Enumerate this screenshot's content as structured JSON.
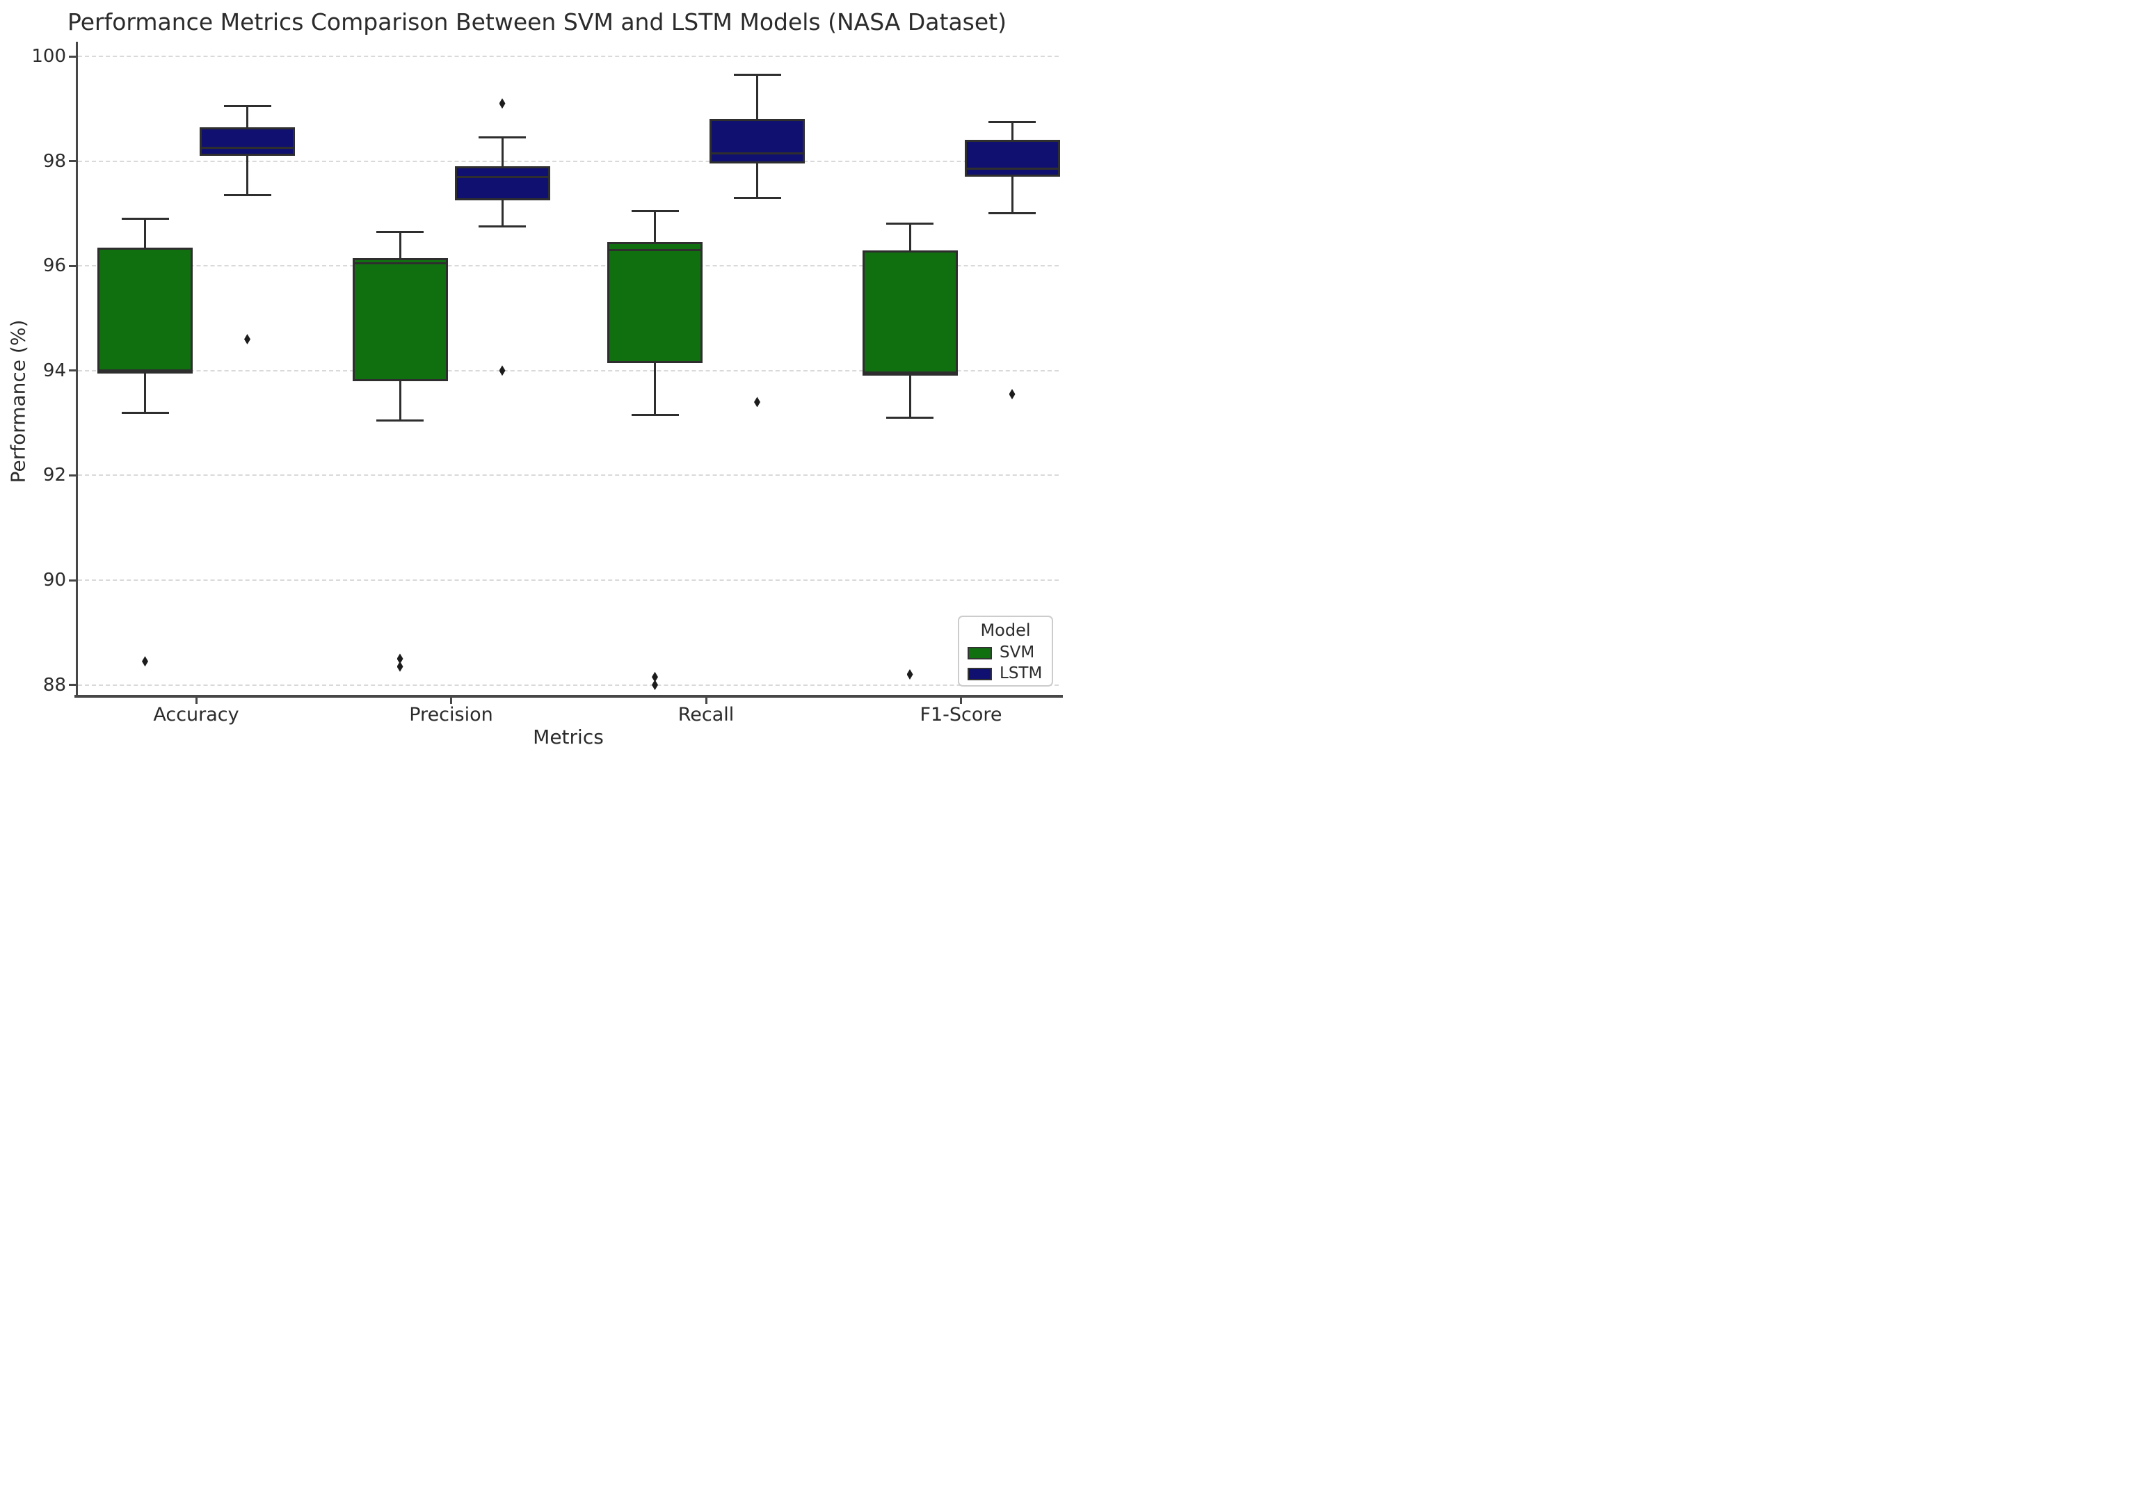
{
  "title": "Performance Metrics Comparison Between SVM and LSTM Models (NASA Dataset)",
  "axes": {
    "xlabel": "Metrics",
    "ylabel": "Performance (%)",
    "yticks": [
      "100",
      "98",
      "96",
      "94",
      "92",
      "90",
      "88"
    ],
    "ytick_values": [
      100,
      98,
      96,
      94,
      92,
      90,
      88
    ],
    "categories": [
      "Accuracy",
      "Precision",
      "Recall",
      "F1-Score"
    ]
  },
  "legend": {
    "title": "Model",
    "entries": [
      {
        "label": "SVM",
        "color": "#107010"
      },
      {
        "label": "LSTM",
        "color": "#101070"
      }
    ]
  },
  "colors": {
    "svm_box": "#107010",
    "lstm_box": "#101070",
    "box_edge": "#2e2e2e",
    "outlier": "#1c1c1c",
    "gridline": "#d9d9d9",
    "spine": "#474747",
    "text": "#2b2b2b",
    "background": "#ffffff"
  },
  "chart_data": {
    "type": "boxplot",
    "title": "Performance Metrics Comparison Between SVM and LSTM Models (NASA Dataset)",
    "xlabel": "Metrics",
    "ylabel": "Performance (%)",
    "categories": [
      "Accuracy",
      "Precision",
      "Recall",
      "F1-Score"
    ],
    "ylim": [
      87.8,
      100.3
    ],
    "yticks": [
      88,
      90,
      92,
      94,
      96,
      98,
      100
    ],
    "grid": "horizontal dashed",
    "legend_position": "lower right",
    "series": [
      {
        "name": "SVM",
        "color": "#107010",
        "boxes": [
          {
            "category": "Accuracy",
            "whisker_low": 93.2,
            "q1": 93.95,
            "median": 94.0,
            "q3": 96.35,
            "whisker_high": 96.9,
            "outliers": [
              88.45
            ]
          },
          {
            "category": "Precision",
            "whisker_low": 93.05,
            "q1": 93.8,
            "median": 96.05,
            "q3": 96.15,
            "whisker_high": 96.65,
            "outliers": [
              88.5,
              88.35
            ]
          },
          {
            "category": "Recall",
            "whisker_low": 93.15,
            "q1": 94.15,
            "median": 96.3,
            "q3": 96.45,
            "whisker_high": 97.05,
            "outliers": [
              88.15,
              88.0
            ]
          },
          {
            "category": "F1-Score",
            "whisker_low": 93.1,
            "q1": 93.9,
            "median": 93.97,
            "q3": 96.3,
            "whisker_high": 96.8,
            "outliers": [
              88.2
            ]
          }
        ]
      },
      {
        "name": "LSTM",
        "color": "#101070",
        "boxes": [
          {
            "category": "Accuracy",
            "whisker_low": 97.35,
            "q1": 98.1,
            "median": 98.25,
            "q3": 98.65,
            "whisker_high": 99.05,
            "outliers": [
              94.6
            ]
          },
          {
            "category": "Precision",
            "whisker_low": 96.75,
            "q1": 97.25,
            "median": 97.7,
            "q3": 97.9,
            "whisker_high": 98.45,
            "outliers": [
              99.1,
              94.0
            ]
          },
          {
            "category": "Recall",
            "whisker_low": 97.3,
            "q1": 97.95,
            "median": 98.15,
            "q3": 98.8,
            "whisker_high": 99.65,
            "outliers": [
              93.4
            ]
          },
          {
            "category": "F1-Score",
            "whisker_low": 97.0,
            "q1": 97.7,
            "median": 97.85,
            "q3": 98.4,
            "whisker_high": 98.75,
            "outliers": [
              93.55
            ]
          }
        ]
      }
    ]
  }
}
